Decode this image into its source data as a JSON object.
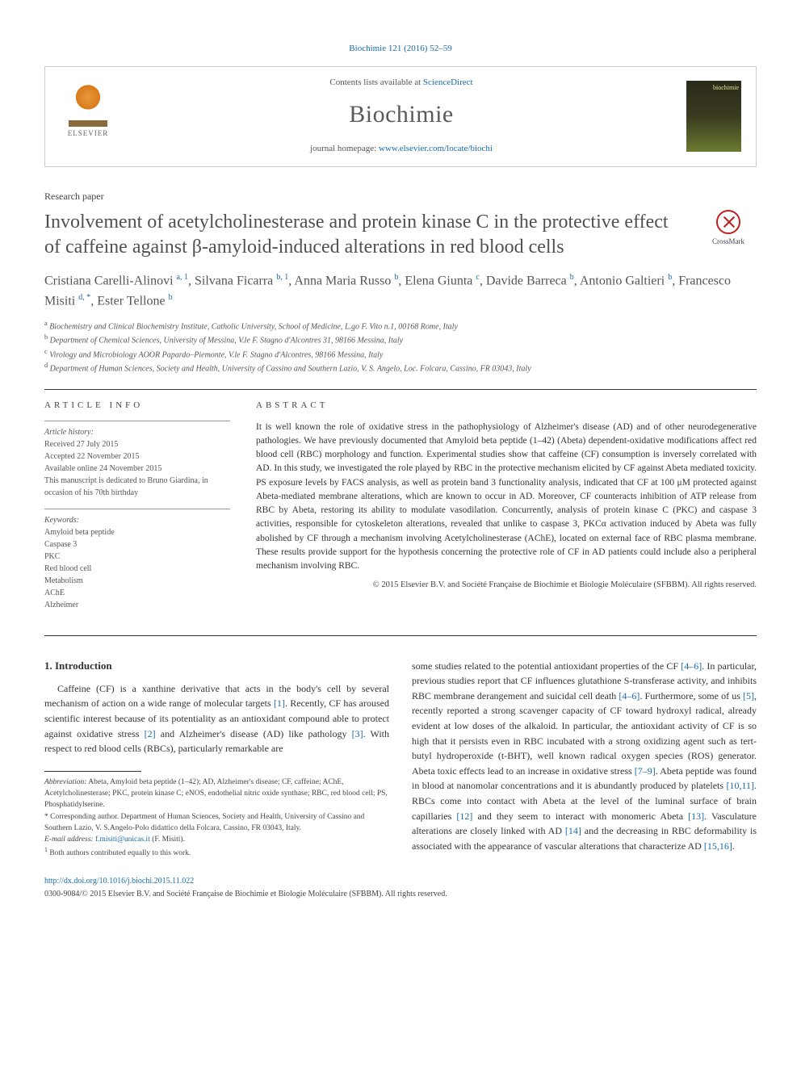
{
  "top_citation": "Biochimie 121 (2016) 52–59",
  "header": {
    "contents_prefix": "Contents lists available at ",
    "contents_link": "ScienceDirect",
    "journal": "Biochimie",
    "homepage_prefix": "journal homepage: ",
    "homepage_link": "www.elsevier.com/locate/biochi",
    "elsevier": "ELSEVIER",
    "cover_label": "biochimie"
  },
  "paper_type": "Research paper",
  "title": "Involvement of acetylcholinesterase and protein kinase C in the protective effect of caffeine against β-amyloid-induced alterations in red blood cells",
  "crossmark": "CrossMark",
  "authors_html": "Cristiana Carelli-Alinovi <sup>a, 1</sup>, Silvana Ficarra <sup>b, 1</sup>, Anna Maria Russo <sup>b</sup>, Elena Giunta <sup>c</sup>, Davide Barreca <sup>b</sup>, Antonio Galtieri <sup>b</sup>, Francesco Misiti <sup>d, *</sup>, Ester Tellone <sup>b</sup>",
  "affiliations": [
    {
      "sup": "a",
      "text": "Biochemistry and Clinical Biochemistry Institute, Catholic University, School of Medicine, L.go F. Vito n.1, 00168 Rome, Italy"
    },
    {
      "sup": "b",
      "text": "Department of Chemical Sciences, University of Messina, V.le F. Stagno d'Alcontres 31, 98166 Messina, Italy"
    },
    {
      "sup": "c",
      "text": "Virology and Microbiology AOOR Papardo–Piemonte, V.le F. Stagno d'Alcontres, 98166 Messina, Italy"
    },
    {
      "sup": "d",
      "text": "Department of Human Sciences, Society and Health, University of Cassino and Southern Lazio, V. S. Angelo, Loc. Folcara, Cassino, FR 03043, Italy"
    }
  ],
  "article_info": {
    "head": "ARTICLE INFO",
    "history_label": "Article history:",
    "received": "Received 27 July 2015",
    "accepted": "Accepted 22 November 2015",
    "online": "Available online 24 November 2015",
    "dedication": "This manuscript is dedicated to Bruno Giardina, in occasion of his 70th birthday",
    "keywords_label": "Keywords:",
    "keywords": [
      "Amyloid beta peptide",
      "Caspase 3",
      "PKC",
      "Red blood cell",
      "Metabolism",
      "AChE",
      "Alzheimer"
    ]
  },
  "abstract": {
    "head": "ABSTRACT",
    "text": "It is well known the role of oxidative stress in the pathophysiology of Alzheimer's disease (AD) and of other neurodegenerative pathologies. We have previously documented that Amyloid beta peptide (1–42) (Abeta) dependent-oxidative modifications affect red blood cell (RBC) morphology and function. Experimental studies show that caffeine (CF) consumption is inversely correlated with AD. In this study, we investigated the role played by RBC in the protective mechanism elicited by CF against Abeta mediated toxicity. PS exposure levels by FACS analysis, as well as protein band 3 functionality analysis, indicated that CF at 100 μM protected against Abeta-mediated membrane alterations, which are known to occur in AD. Moreover, CF counteracts inhibition of ATP release from RBC by Abeta, restoring its ability to modulate vasodilation. Concurrently, analysis of protein kinase C (PKC) and caspase 3 activities, responsible for cytoskeleton alterations, revealed that unlike to caspase 3, PKCα activation induced by Abeta was fully abolished by CF through a mechanism involving Acetylcholinesterase (AChE), located on external face of RBC plasma membrane. These results provide support for the hypothesis concerning the protective role of CF in AD patients could include also a peripheral mechanism involving RBC.",
    "copyright": "© 2015 Elsevier B.V. and Société Française de Biochimie et Biologie Moléculaire (SFBBM). All rights reserved."
  },
  "body": {
    "section_num": "1.",
    "section_title": "Introduction",
    "para1_a": "Caffeine (CF) is a xanthine derivative that acts in the body's cell by several mechanism of action on a wide range of molecular targets ",
    "ref1": "[1]",
    "para1_b": ". Recently, CF has aroused scientific interest because of its potentiality as an antioxidant compound able to protect against oxidative stress ",
    "ref2": "[2]",
    "para1_c": " and Alzheimer's disease (AD) like pathology ",
    "ref3": "[3]",
    "para1_d": ". With respect to red blood cells (RBCs), particularly remarkable are",
    "para2_a": "some studies related to the potential antioxidant properties of the CF ",
    "ref46a": "[4–6]",
    "para2_b": ". In particular, previous studies report that CF influences glutathione S-transferase activity, and inhibits RBC membrane derangement and suicidal cell death ",
    "ref46b": "[4–6]",
    "para2_c": ". Furthermore, some of us ",
    "ref5": "[5]",
    "para2_d": ", recently reported a strong scavenger capacity of CF toward hydroxyl radical, already evident at low doses of the alkaloid. In particular, the antioxidant activity of CF is so high that it persists even in RBC incubated with a strong oxidizing agent such as tert-butyl hydroperoxide (t-BHT), well known radical oxygen species (ROS) generator. Abeta toxic effects lead to an increase in oxidative stress ",
    "ref79": "[7–9]",
    "para2_e": ". Abeta peptide was found in blood at nanomolar concentrations and it is abundantly produced by platelets ",
    "ref1011": "[10,11]",
    "para2_f": ". RBCs come into contact with Abeta at the level of the luminal surface of brain capillaries ",
    "ref12": "[12]",
    "para2_g": " and they seem to interact with monomeric Abeta ",
    "ref13": "[13]",
    "para2_h": ". Vasculature alterations are closely linked with AD ",
    "ref14": "[14]",
    "para2_i": " and the decreasing in RBC deformability is associated with the appearance of vascular alterations that characterize AD ",
    "ref1516": "[15,16]",
    "para2_j": "."
  },
  "footnotes": {
    "abbrev_label": "Abbreviation:",
    "abbrev": " Abeta, Amyloid beta peptide (1–42); AD, Alzheimer's disease; CF, caffeine; AChE, Acetylcholinesterase; PKC, protein kinase C; eNOS, endothelial nitric oxide synthase; RBC, red blood cell; PS, Phosphatidylserine.",
    "corr_label": "* Corresponding author.",
    "corr": " Department of Human Sciences, Society and Health, University of Cassino and Southern Lazio, V. S.Angelo-Polo didattico della Folcara, Cassino, FR 03043, Italy.",
    "email_label": "E-mail address: ",
    "email": "f.misiti@unicas.it",
    "email_who": " (F. Misiti).",
    "contrib": "Both authors contributed equally to this work.",
    "contrib_sup": "1"
  },
  "doi": {
    "url": "http://dx.doi.org/10.1016/j.biochi.2015.11.022",
    "issn_copy": "0300-9084/© 2015 Elsevier B.V. and Société Française de Biochimie et Biologie Moléculaire (SFBBM). All rights reserved."
  },
  "colors": {
    "link": "#1a6ba8",
    "text": "#333333",
    "muted": "#555555",
    "border": "#cccccc"
  }
}
